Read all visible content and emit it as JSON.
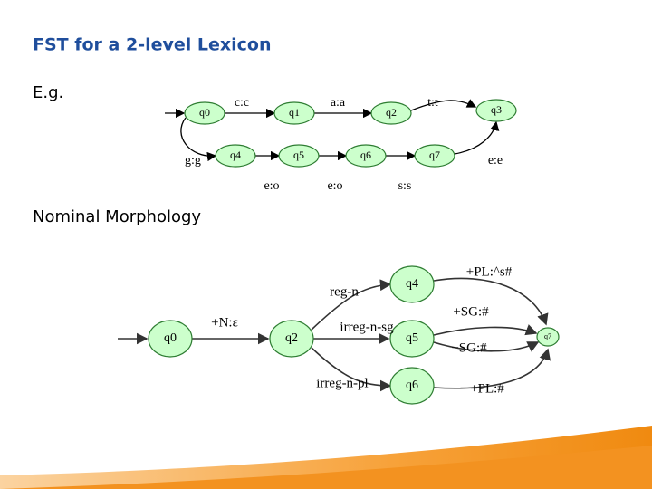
{
  "title": "FST for a 2-level Lexicon",
  "example_label": "E.g.",
  "top_diagram": {
    "nodes": [
      {
        "label": "q0"
      },
      {
        "label": "q1"
      },
      {
        "label": "q2"
      },
      {
        "label": "q3"
      },
      {
        "label": "q4"
      },
      {
        "label": "q5"
      },
      {
        "label": "q6"
      },
      {
        "label": "q7"
      }
    ],
    "edges": [
      {
        "label": "c:c"
      },
      {
        "label": "a:a"
      },
      {
        "label": "t:t"
      },
      {
        "label": "g:g"
      },
      {
        "label": "e:o"
      },
      {
        "label": "e:o"
      },
      {
        "label": "s:s"
      },
      {
        "label": "e:e"
      }
    ]
  },
  "section_label": "Nominal Morphology",
  "bottom_diagram": {
    "nodes": [
      {
        "label": "q0"
      },
      {
        "label": "q2"
      },
      {
        "label": "q4"
      },
      {
        "label": "q5"
      },
      {
        "label": "q6"
      },
      {
        "label": "q7"
      }
    ],
    "edges": [
      {
        "label": "+N:ε"
      },
      {
        "label": "reg-n"
      },
      {
        "label": "irreg-n-sg"
      },
      {
        "label": "irreg-n-pl"
      },
      {
        "label": "+PL:^s#"
      },
      {
        "label": "+SG:#"
      },
      {
        "label": "+SG:#"
      },
      {
        "label": "+PL:#"
      }
    ]
  }
}
